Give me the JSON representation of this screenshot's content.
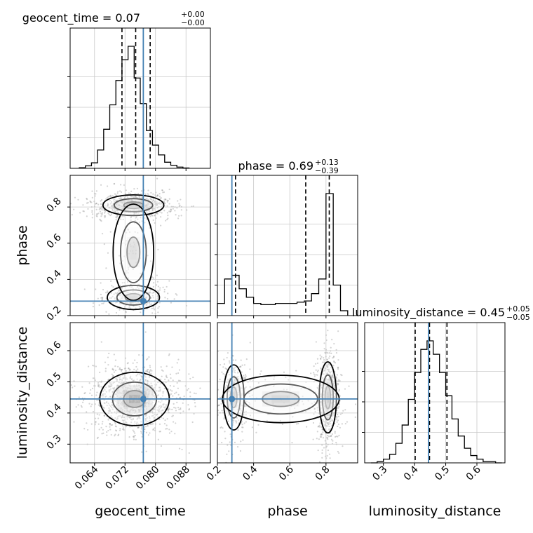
{
  "chart_data": {
    "type": "corner",
    "parameters": [
      "geocent_time",
      "phase",
      "luminosity_distance"
    ],
    "truths": {
      "geocent_time": 0.0768,
      "phase": 0.28,
      "luminosity_distance": 0.445
    },
    "axis_ranges": {
      "geocent_time": [
        0.0576,
        0.0944
      ],
      "phase": [
        0.2,
        0.975
      ],
      "luminosity_distance": [
        0.24,
        0.69
      ]
    },
    "tick_labels": {
      "geocent_time": [
        "0.064",
        "0.072",
        "0.080",
        "0.088"
      ],
      "phase": [
        "0.2",
        "0.4",
        "0.6",
        "0.8"
      ],
      "luminosity_distance": [
        "0.3",
        "0.4",
        "0.5",
        "0.6"
      ]
    },
    "xlabels": {
      "geocent_time": "geocent_time",
      "phase": "phase",
      "luminosity_distance": "luminosity_distance"
    },
    "ylabels": {
      "phase": "phase",
      "luminosity_distance": "luminosity_distance"
    },
    "titles": [
      {
        "param": "geocent_time",
        "main": "geocent_time = 0.07",
        "upper": "+0.00",
        "lower": "−0.00"
      },
      {
        "param": "phase",
        "main": "phase = 0.69",
        "upper": "+0.13",
        "lower": "−0.39"
      },
      {
        "param": "luminosity_distance",
        "main": "luminosity_distance = 0.45",
        "upper": "+0.05",
        "lower": "−0.05"
      }
    ],
    "quantiles": {
      "geocent_time": [
        0.0712,
        0.0748,
        0.0786
      ],
      "phase": [
        0.3,
        0.688,
        0.818
      ],
      "luminosity_distance": [
        0.402,
        0.448,
        0.504
      ]
    },
    "histograms": {
      "geocent_time": {
        "edges": [
          0.06,
          0.0616,
          0.0632,
          0.0648,
          0.0664,
          0.068,
          0.0696,
          0.0712,
          0.0728,
          0.0744,
          0.076,
          0.0776,
          0.0792,
          0.0808,
          0.0824,
          0.084,
          0.0856,
          0.0872,
          0.0888
        ],
        "counts": [
          0.005,
          0.02,
          0.045,
          0.15,
          0.32,
          0.52,
          0.72,
          0.89,
          1.0,
          0.74,
          0.53,
          0.31,
          0.19,
          0.11,
          0.05,
          0.025,
          0.01,
          0.003
        ]
      },
      "phase": {
        "edges": [
          0.2,
          0.24,
          0.28,
          0.32,
          0.36,
          0.4,
          0.44,
          0.48,
          0.52,
          0.56,
          0.6,
          0.64,
          0.68,
          0.72,
          0.76,
          0.8,
          0.84,
          0.88,
          0.92
        ],
        "counts": [
          0.1,
          0.3,
          0.33,
          0.22,
          0.15,
          0.1,
          0.09,
          0.09,
          0.1,
          0.1,
          0.1,
          0.11,
          0.12,
          0.18,
          0.3,
          1.0,
          0.25,
          0.04
        ]
      },
      "luminosity_distance": {
        "edges": [
          0.26,
          0.28,
          0.3,
          0.32,
          0.34,
          0.36,
          0.38,
          0.4,
          0.42,
          0.44,
          0.46,
          0.48,
          0.5,
          0.52,
          0.54,
          0.56,
          0.58,
          0.6,
          0.62,
          0.64,
          0.66,
          0.68
        ],
        "counts": [
          0.0,
          0.01,
          0.03,
          0.07,
          0.16,
          0.31,
          0.52,
          0.74,
          0.93,
          1.0,
          0.89,
          0.74,
          0.55,
          0.36,
          0.22,
          0.12,
          0.06,
          0.03,
          0.01,
          0.01,
          0.0
        ]
      }
    },
    "density_clusters": {
      "geocent_time_vs_phase": [
        {
          "x": 0.0742,
          "y": 0.81,
          "sx": 0.0042,
          "sy": 0.03,
          "w": 1.0
        },
        {
          "x": 0.0742,
          "y": 0.3,
          "sx": 0.0036,
          "sy": 0.035,
          "w": 0.45
        },
        {
          "x": 0.0742,
          "y": 0.55,
          "sx": 0.0028,
          "sy": 0.14,
          "w": 0.12
        }
      ],
      "geocent_time_vs_luminosity_distance": [
        {
          "x": 0.0745,
          "y": 0.445,
          "sx": 0.0048,
          "sy": 0.045,
          "w": 1.0
        }
      ],
      "phase_vs_luminosity_distance": [
        {
          "x": 0.81,
          "y": 0.45,
          "sx": 0.025,
          "sy": 0.06,
          "w": 1.0
        },
        {
          "x": 0.29,
          "y": 0.45,
          "sx": 0.03,
          "sy": 0.055,
          "w": 0.55
        },
        {
          "x": 0.55,
          "y": 0.445,
          "sx": 0.17,
          "sy": 0.04,
          "w": 0.22
        }
      ]
    },
    "grid": true,
    "colors": {
      "truth": "#4682b4",
      "contour": "#000000",
      "points": "#808080",
      "grid": "#c8c8c8"
    }
  }
}
